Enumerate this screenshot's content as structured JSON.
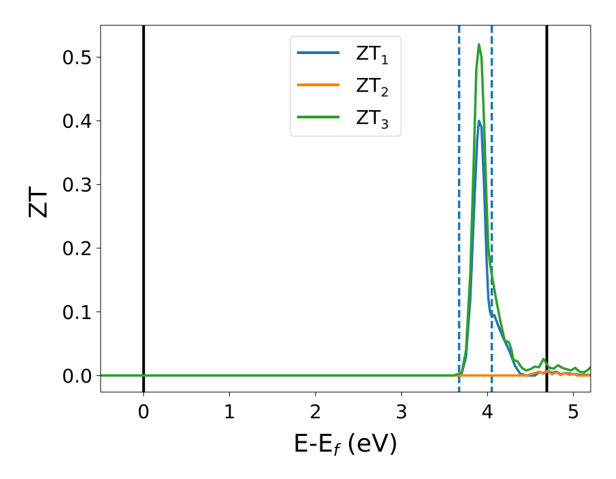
{
  "chart_data": {
    "type": "line",
    "xlabel": "E-E",
    "xlabel_sub": "f",
    "xlabel_unit": " (eV)",
    "ylabel": "ZT",
    "xlim": [
      -0.5,
      5.2
    ],
    "ylim": [
      -0.026,
      0.55
    ],
    "xticks": [
      0,
      1,
      2,
      3,
      4,
      5
    ],
    "yticks": [
      0.0,
      0.1,
      0.2,
      0.3,
      0.4,
      0.5
    ],
    "ytick_labels": [
      "0.0",
      "0.1",
      "0.2",
      "0.3",
      "0.4",
      "0.5"
    ],
    "legend_position": "upper-center",
    "vlines": [
      {
        "x": 0.0,
        "style": "solid",
        "color": "#000000"
      },
      {
        "x": 4.69,
        "style": "solid",
        "color": "#000000"
      },
      {
        "x": 3.67,
        "style": "dashed",
        "color": "#1f77b4"
      },
      {
        "x": 4.05,
        "style": "dashed",
        "color": "#1f77b4"
      }
    ],
    "series": [
      {
        "name": "ZT",
        "sub": "1",
        "color": "#1f77b4",
        "points": [
          [
            -0.5,
            0
          ],
          [
            3.6,
            0
          ],
          [
            3.7,
            0.003
          ],
          [
            3.75,
            0.03
          ],
          [
            3.8,
            0.12
          ],
          [
            3.85,
            0.28
          ],
          [
            3.88,
            0.37
          ],
          [
            3.9,
            0.4
          ],
          [
            3.93,
            0.39
          ],
          [
            3.96,
            0.3
          ],
          [
            3.99,
            0.18
          ],
          [
            4.01,
            0.12
          ],
          [
            4.03,
            0.1
          ],
          [
            4.05,
            0.092
          ],
          [
            4.08,
            0.095
          ],
          [
            4.12,
            0.08
          ],
          [
            4.18,
            0.06
          ],
          [
            4.25,
            0.04
          ],
          [
            4.32,
            0.015
          ],
          [
            4.38,
            0.003
          ],
          [
            4.45,
            0
          ],
          [
            4.55,
            0
          ],
          [
            4.6,
            0.005
          ],
          [
            4.65,
            0.004
          ],
          [
            4.7,
            0.008
          ],
          [
            4.75,
            0.004
          ],
          [
            4.8,
            0.006
          ],
          [
            4.85,
            0.002
          ],
          [
            4.9,
            0.004
          ],
          [
            5.0,
            0.002
          ],
          [
            5.1,
            0.001
          ],
          [
            5.2,
            0.001
          ]
        ]
      },
      {
        "name": "ZT",
        "sub": "2",
        "color": "#ff7f0e",
        "points": [
          [
            -0.5,
            0
          ],
          [
            3.6,
            0
          ],
          [
            4.45,
            0
          ],
          [
            4.55,
            0.004
          ],
          [
            4.6,
            0.006
          ],
          [
            4.65,
            0.003
          ],
          [
            4.7,
            0.007
          ],
          [
            4.75,
            0.002
          ],
          [
            4.8,
            0.005
          ],
          [
            4.85,
            0.001
          ],
          [
            4.9,
            0.004
          ],
          [
            4.95,
            0.001
          ],
          [
            5.0,
            0.003
          ],
          [
            5.05,
            0
          ],
          [
            5.2,
            0
          ]
        ]
      },
      {
        "name": "ZT",
        "sub": "3",
        "color": "#2ca02c",
        "points": [
          [
            -0.5,
            0
          ],
          [
            3.6,
            0
          ],
          [
            3.7,
            0.004
          ],
          [
            3.75,
            0.04
          ],
          [
            3.8,
            0.16
          ],
          [
            3.84,
            0.34
          ],
          [
            3.87,
            0.48
          ],
          [
            3.9,
            0.52
          ],
          [
            3.93,
            0.5
          ],
          [
            3.96,
            0.4
          ],
          [
            3.99,
            0.27
          ],
          [
            4.01,
            0.2
          ],
          [
            4.03,
            0.175
          ],
          [
            4.06,
            0.15
          ],
          [
            4.1,
            0.12
          ],
          [
            4.15,
            0.085
          ],
          [
            4.2,
            0.055
          ],
          [
            4.25,
            0.052
          ],
          [
            4.28,
            0.04
          ],
          [
            4.3,
            0.025
          ],
          [
            4.35,
            0.022
          ],
          [
            4.4,
            0.012
          ],
          [
            4.45,
            0.008
          ],
          [
            4.5,
            0.01
          ],
          [
            4.55,
            0.014
          ],
          [
            4.6,
            0.013
          ],
          [
            4.65,
            0.026
          ],
          [
            4.68,
            0.02
          ],
          [
            4.72,
            0.012
          ],
          [
            4.77,
            0.011
          ],
          [
            4.82,
            0.016
          ],
          [
            4.87,
            0.012
          ],
          [
            4.92,
            0.01
          ],
          [
            4.97,
            0.008
          ],
          [
            5.02,
            0.012
          ],
          [
            5.07,
            0.006
          ],
          [
            5.12,
            0.005
          ],
          [
            5.17,
            0.009
          ],
          [
            5.2,
            0.013
          ]
        ]
      }
    ]
  }
}
